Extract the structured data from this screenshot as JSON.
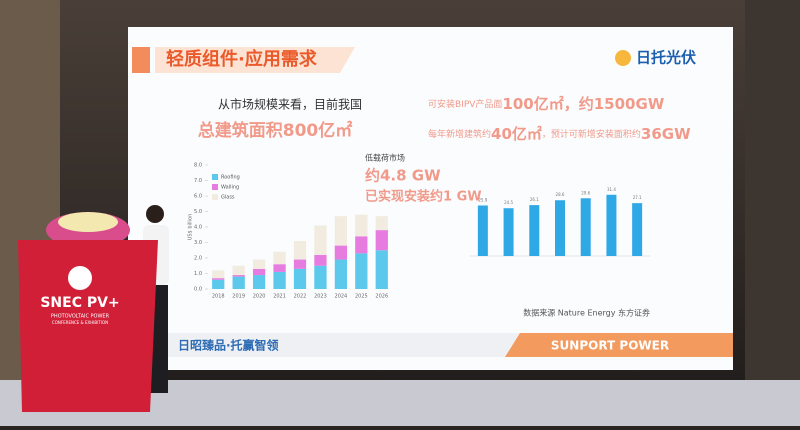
{
  "slide": {
    "title": "轻质组件·应用需求",
    "logo": "日托光伏",
    "intro": "从市场规模来看，目前我国",
    "highlight": "总建筑面积800亿㎡",
    "bipv": [
      "可安装BIPV产品面",
      "100亿㎡",
      "，约1500GW"
    ],
    "new_build": [
      "每年新增建筑约",
      "40亿㎡",
      "，预计可新增安装面积约",
      "36GW"
    ],
    "source": "数据来源 Nature Energy 东方证券",
    "footer_left": "日昭臻品·托赢智领",
    "footer_right": "SUNPORT POWER"
  },
  "podium": {
    "brand": "SNEC PV+",
    "line1": "PHOTOVOLTAIC POWER",
    "line2": "CONFERENCE & EXHIBITION"
  },
  "chart_data": [
    {
      "type": "stacked-bar",
      "y_label": "US$ billion",
      "categories": [
        "2018",
        "2019",
        "2020",
        "2021",
        "2022",
        "2023",
        "2024",
        "2025",
        "2026"
      ],
      "series": [
        {
          "name": "Roofing",
          "color": "#5bc8ec",
          "values": [
            0.6,
            0.8,
            0.9,
            1.1,
            1.3,
            1.5,
            1.9,
            2.3,
            2.5
          ]
        },
        {
          "name": "Walling",
          "color": "#e67be0",
          "values": [
            0.1,
            0.1,
            0.4,
            0.5,
            0.6,
            0.7,
            0.9,
            1.1,
            1.3
          ]
        },
        {
          "name": "Glass",
          "color": "#f1ecdf",
          "values": [
            0.5,
            0.6,
            0.6,
            0.8,
            1.2,
            1.9,
            1.9,
            1.4,
            0.9
          ]
        }
      ],
      "ylim": [
        0,
        8
      ],
      "yticks": [
        {
          "value": 0,
          "label": "0.0"
        },
        {
          "value": 1,
          "label": "1.0"
        },
        {
          "value": 2,
          "label": "2.0"
        },
        {
          "value": 3,
          "label": "3.0"
        },
        {
          "value": 4,
          "label": "4.0"
        },
        {
          "value": 5,
          "label": "5.0"
        },
        {
          "value": 6,
          "label": "6.0"
        },
        {
          "value": 7,
          "label": "7.0"
        },
        {
          "value": 8,
          "label": "8.0"
        }
      ],
      "legend": "upper-left",
      "annotations": [
        "低载荷市场",
        "约4.8 GW",
        "已实现安装约1 GW"
      ]
    },
    {
      "type": "bar",
      "color": "#2fa8e6",
      "values": [
        25.9,
        24.5,
        26.1,
        28.6,
        29.6,
        31.4,
        27.1
      ],
      "ylim": [
        0,
        40
      ]
    }
  ]
}
